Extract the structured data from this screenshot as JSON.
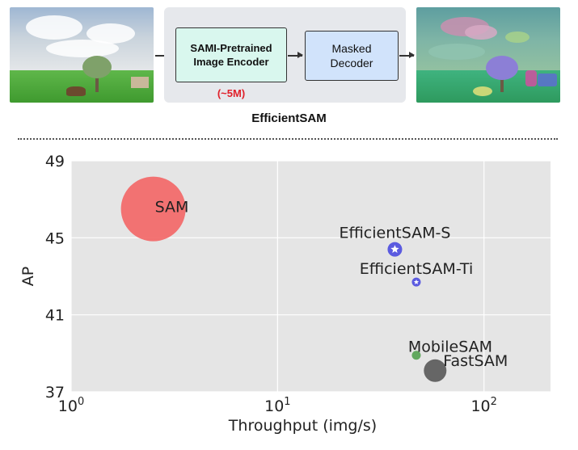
{
  "diagram": {
    "encoder_label_line1": "SAMI-Pretrained",
    "encoder_label_line2": "Image Encoder",
    "decoder_label_line1": "Masked",
    "decoder_label_line2": "Decoder",
    "encoder_params": "(~5M)",
    "model_name": "EfficientSAM",
    "colors": {
      "encoder_fill": "#d9f7ee",
      "decoder_fill": "#d1e3fb",
      "params_text": "#e0202a",
      "panel_bg": "#e6e8ec"
    }
  },
  "chart_data": {
    "type": "scatter",
    "title": "",
    "xlabel": "Throughput (img/s)",
    "ylabel": "AP",
    "xscale": "log",
    "xlim": [
      1,
      210
    ],
    "ylim": [
      37,
      49
    ],
    "yticks": [
      37,
      41,
      45,
      49
    ],
    "xticks": [
      {
        "value": 1,
        "base": "10",
        "exp": "0"
      },
      {
        "value": 10,
        "base": "10",
        "exp": "1"
      },
      {
        "value": 100,
        "base": "10",
        "exp": "2"
      }
    ],
    "grid": true,
    "background": "#e5e5e5",
    "points": [
      {
        "label": "SAM",
        "x": 2.5,
        "y": 46.5,
        "size": "large",
        "color": "#f26b6b",
        "marker": "circle"
      },
      {
        "label": "EfficientSAM-S",
        "x": 37,
        "y": 44.4,
        "size": "small",
        "color": "#5b5be0",
        "marker": "star"
      },
      {
        "label": "EfficientSAM-Ti",
        "x": 47,
        "y": 42.7,
        "size": "tiny",
        "color": "#5b5be0",
        "marker": "star"
      },
      {
        "label": "MobileSAM",
        "x": 47,
        "y": 38.9,
        "size": "tiny",
        "color": "#62a85f",
        "marker": "circle"
      },
      {
        "label": "FastSAM",
        "x": 58,
        "y": 38.1,
        "size": "medium",
        "color": "#666666",
        "marker": "circle"
      }
    ]
  }
}
